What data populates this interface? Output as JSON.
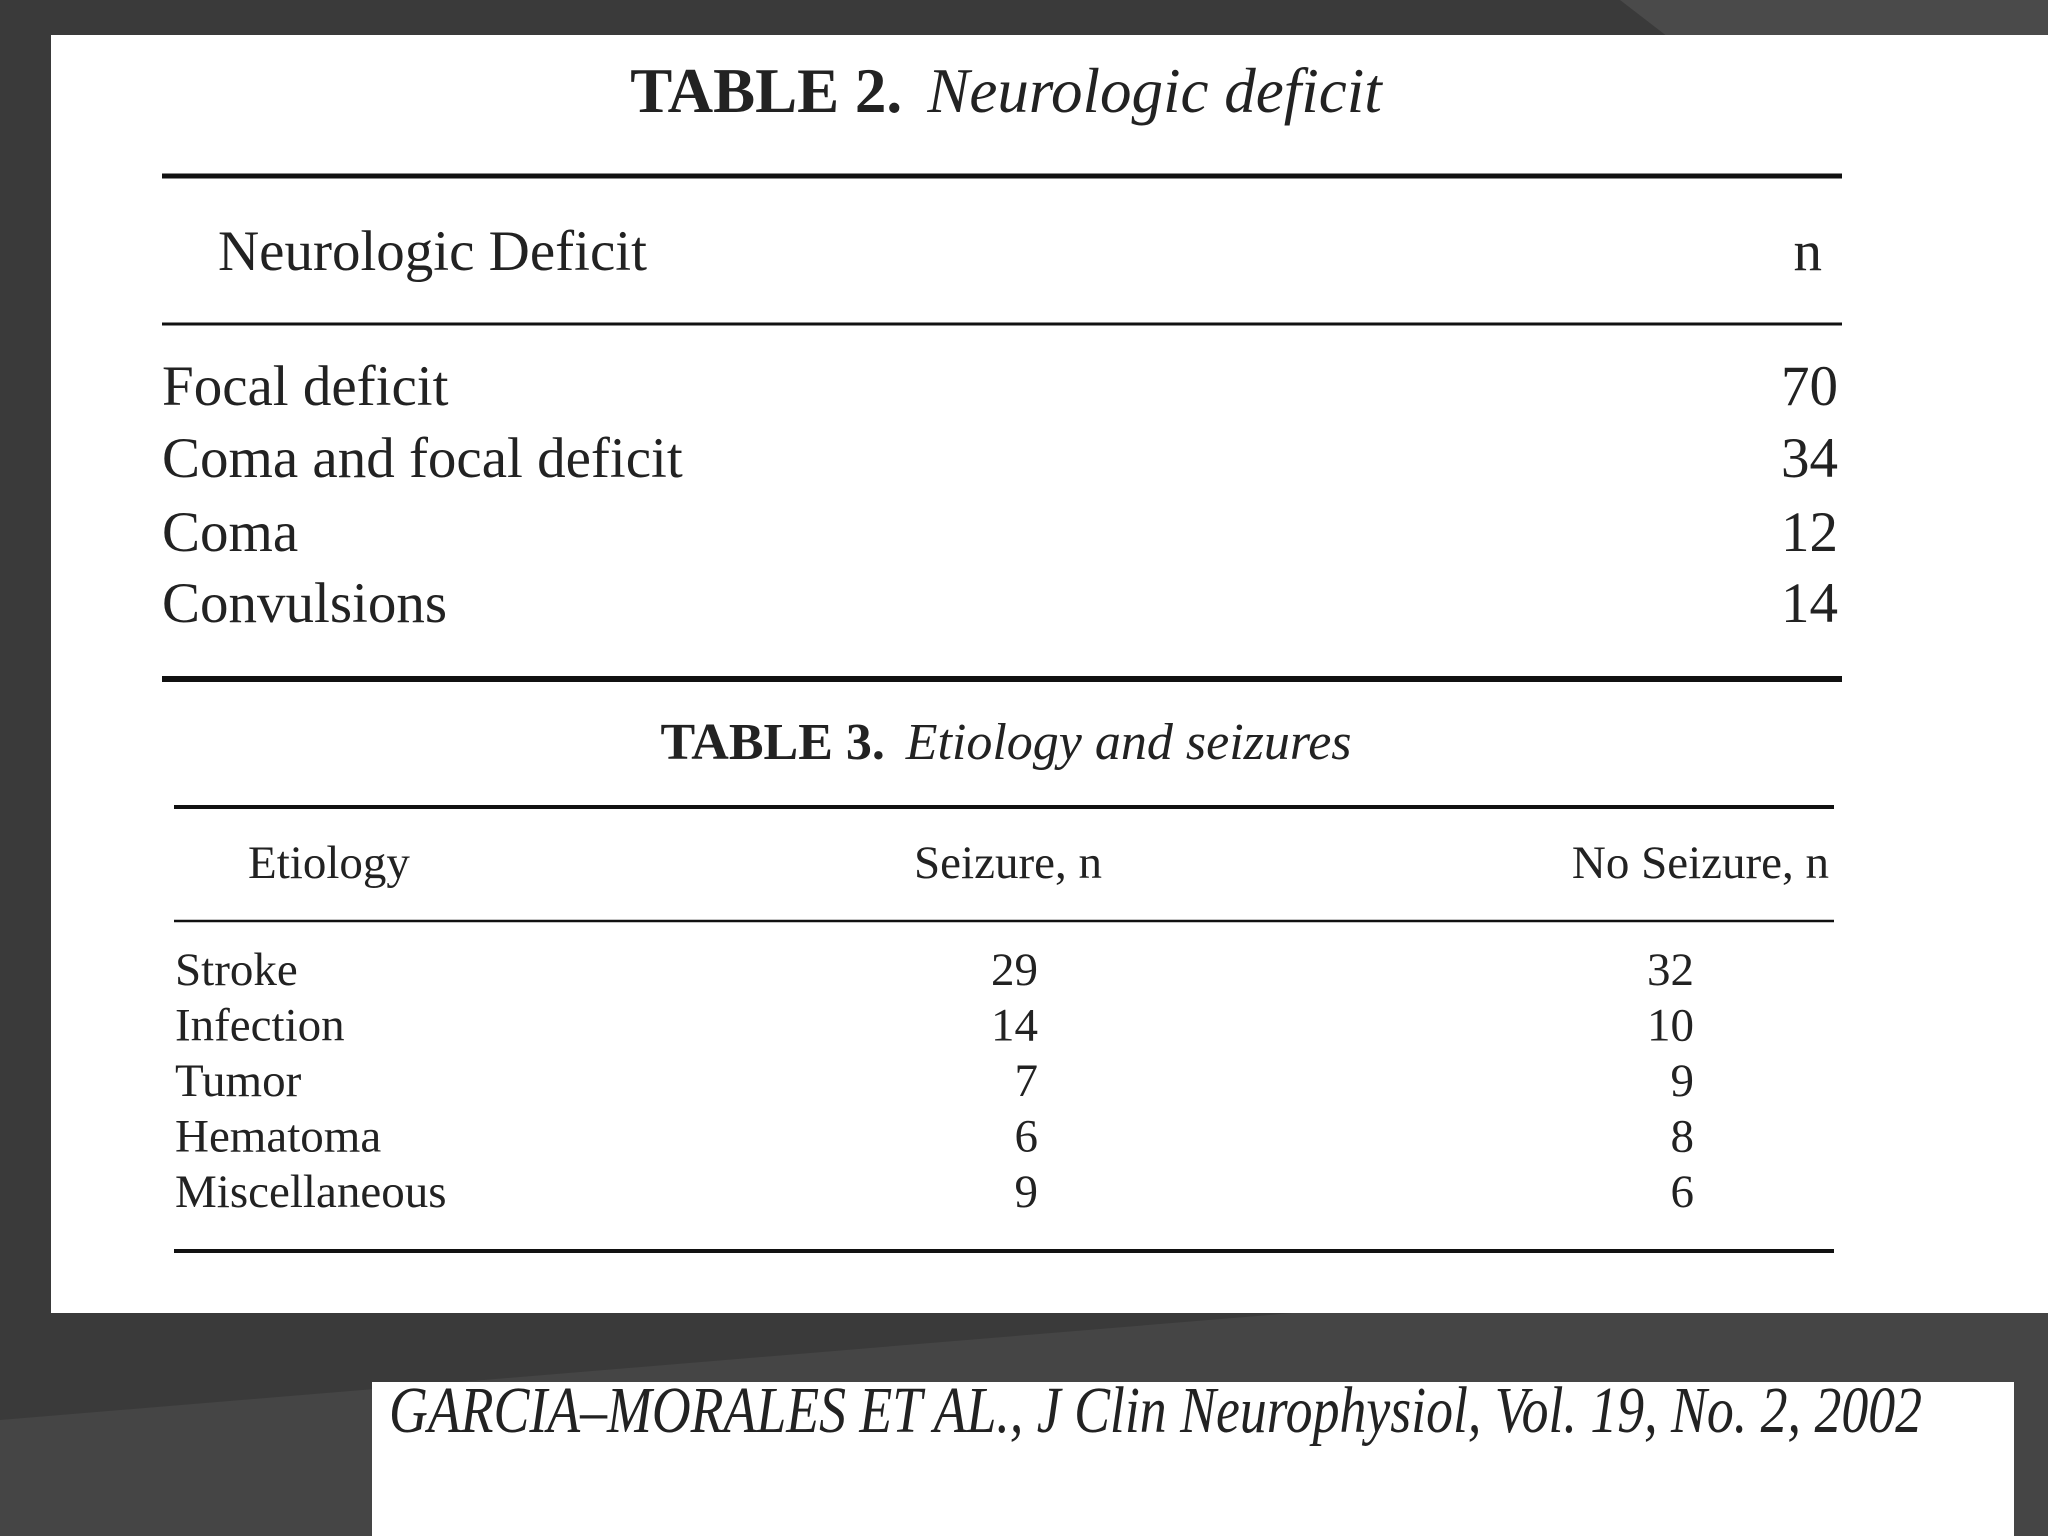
{
  "table2": {
    "label": "TABLE 2.",
    "caption": "Neurologic deficit",
    "headers": [
      "Neurologic Deficit",
      "n"
    ],
    "rows": [
      [
        "Focal deficit",
        70
      ],
      [
        "Coma and focal deficit",
        34
      ],
      [
        "Coma",
        12
      ],
      [
        "Convulsions",
        14
      ]
    ]
  },
  "table3": {
    "label": "TABLE 3.",
    "caption": "Etiology and seizures",
    "headers": [
      "Etiology",
      "Seizure, n",
      "No Seizure, n"
    ],
    "rows": [
      [
        "Stroke",
        29,
        32
      ],
      [
        "Infection",
        14,
        10
      ],
      [
        "Tumor",
        7,
        9
      ],
      [
        "Hematoma",
        6,
        8
      ],
      [
        "Miscellaneous",
        9,
        6
      ]
    ]
  },
  "citation": "GARCIA–MORALES ET AL., J Clin Neurophysiol, Vol. 19, No. 2, 2002"
}
